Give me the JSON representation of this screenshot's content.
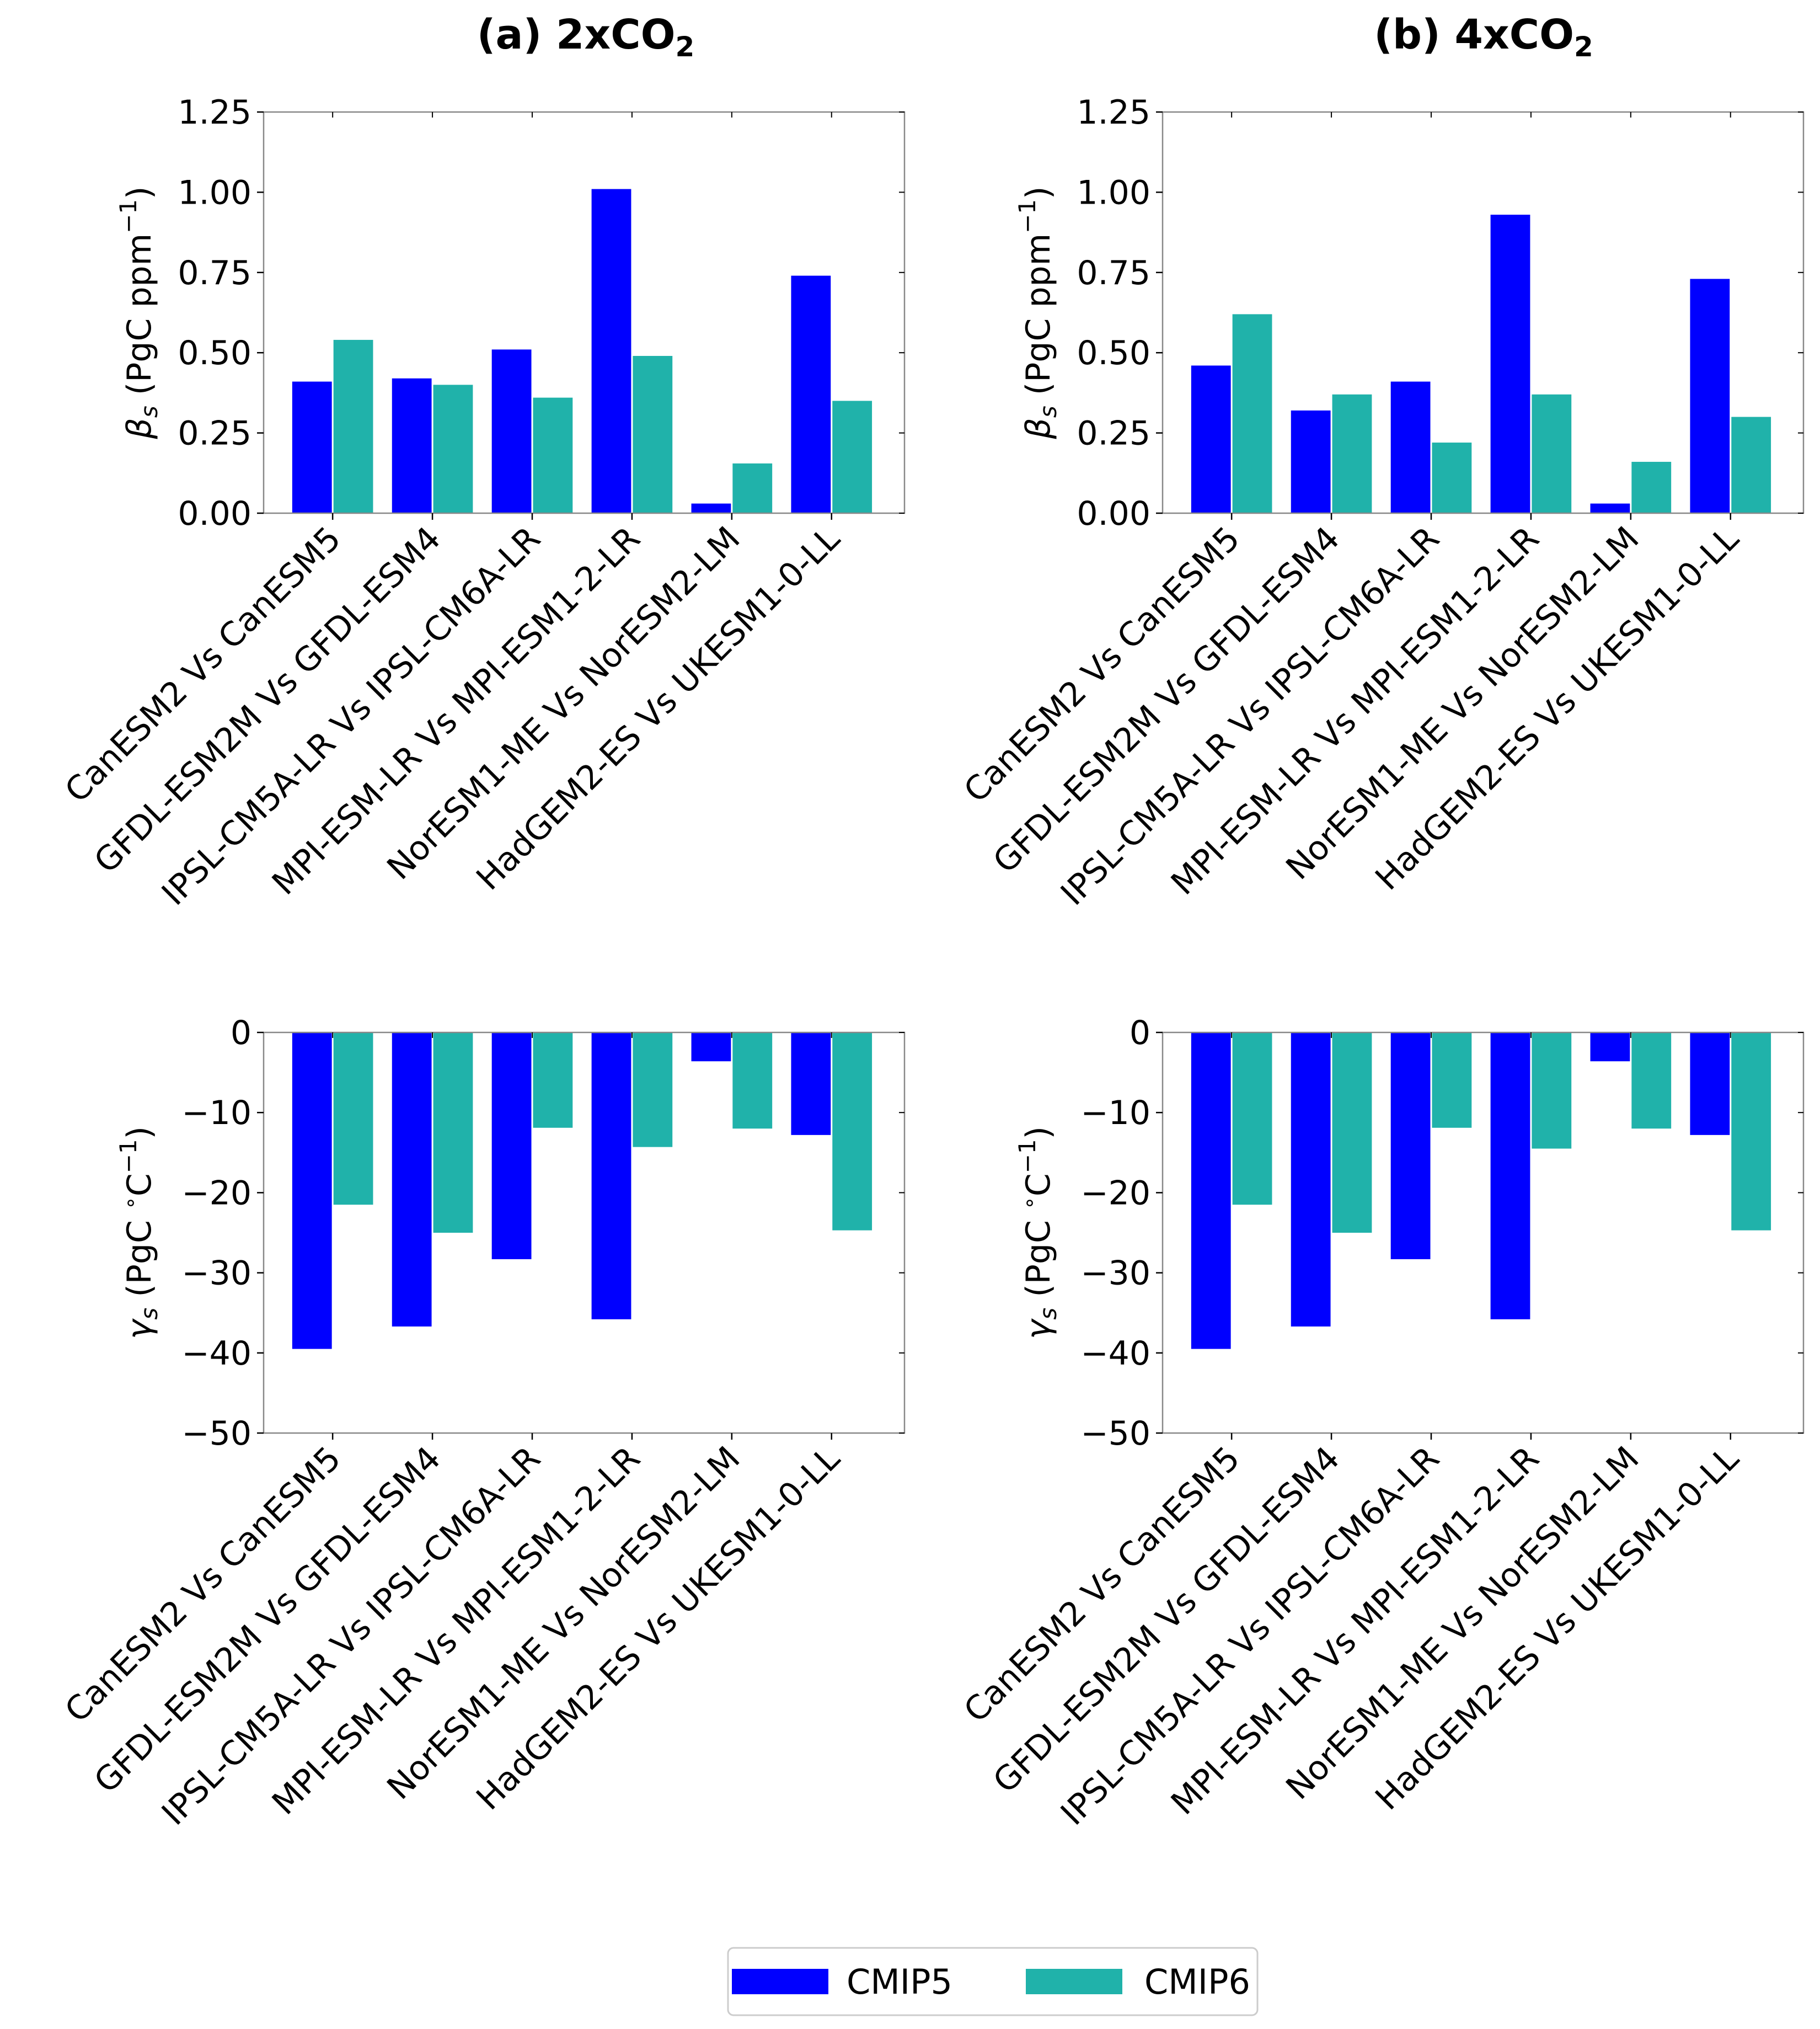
{
  "column_titles": [
    {
      "prefix": "(a) 2xCO",
      "sub": "2"
    },
    {
      "prefix": "(b) 4xCO",
      "sub": "2"
    }
  ],
  "legend": {
    "placement": "bottom-center",
    "items": [
      {
        "label": "CMIP5",
        "color": "#0000ff"
      },
      {
        "label": "CMIP6",
        "color": "#20b2aa"
      }
    ]
  },
  "colors": {
    "cmip5": "#0000ff",
    "cmip6": "#20b2aa",
    "axis": "#888888"
  },
  "chart_data": [
    {
      "type": "bar",
      "panel": "(a) 2xCO2 top",
      "ylabel": {
        "symbol": "β",
        "sub": "s",
        "unit": "(PgC ppm",
        "sup": "−1",
        "close": ")"
      },
      "categories": [
        "CanESM2 Vs CanESM5",
        "GFDL-ESM2M Vs GFDL-ESM4",
        "IPSL-CM5A-LR Vs IPSL-CM6A-LR",
        "MPI-ESM-LR Vs MPI-ESM1-2-LR",
        "NorESM1-ME Vs NorESM2-LM",
        "HadGEM2-ES Vs UKESM1-0-LL"
      ],
      "series": [
        {
          "name": "CMIP5",
          "values": [
            0.41,
            0.42,
            0.51,
            1.01,
            0.03,
            0.74
          ]
        },
        {
          "name": "CMIP6",
          "values": [
            0.54,
            0.4,
            0.36,
            0.49,
            0.155,
            0.35
          ]
        }
      ],
      "ylim": [
        0,
        1.25
      ],
      "yticks": [
        "0.00",
        "0.25",
        "0.50",
        "0.75",
        "1.00",
        "1.25"
      ],
      "grid": false
    },
    {
      "type": "bar",
      "panel": "(b) 4xCO2 top",
      "ylabel": {
        "symbol": "β",
        "sub": "s",
        "unit": "(PgC ppm",
        "sup": "−1",
        "close": ")"
      },
      "categories": [
        "CanESM2 Vs CanESM5",
        "GFDL-ESM2M Vs GFDL-ESM4",
        "IPSL-CM5A-LR Vs IPSL-CM6A-LR",
        "MPI-ESM-LR Vs MPI-ESM1-2-LR",
        "NorESM1-ME Vs NorESM2-LM",
        "HadGEM2-ES Vs UKESM1-0-LL"
      ],
      "series": [
        {
          "name": "CMIP5",
          "values": [
            0.46,
            0.32,
            0.41,
            0.93,
            0.03,
            0.73
          ]
        },
        {
          "name": "CMIP6",
          "values": [
            0.62,
            0.37,
            0.22,
            0.37,
            0.16,
            0.3
          ]
        }
      ],
      "ylim": [
        0,
        1.25
      ],
      "yticks": [
        "0.00",
        "0.25",
        "0.50",
        "0.75",
        "1.00",
        "1.25"
      ],
      "grid": false
    },
    {
      "type": "bar",
      "panel": "(a) 2xCO2 bottom",
      "ylabel": {
        "symbol": "γ",
        "sub": "s",
        "unit": "(PgC ",
        "sup2": "∘",
        "unit2": "C",
        "sup": "−1",
        "close": ")"
      },
      "categories": [
        "CanESM2 Vs CanESM5",
        "GFDL-ESM2M Vs GFDL-ESM4",
        "IPSL-CM5A-LR Vs IPSL-CM6A-LR",
        "MPI-ESM-LR Vs MPI-ESM1-2-LR",
        "NorESM1-ME Vs NorESM2-LM",
        "HadGEM2-ES Vs UKESM1-0-LL"
      ],
      "series": [
        {
          "name": "CMIP5",
          "values": [
            -39.5,
            -36.7,
            -28.3,
            -35.8,
            -3.6,
            -12.8
          ]
        },
        {
          "name": "CMIP6",
          "values": [
            -21.5,
            -25.0,
            -11.9,
            -14.3,
            -12.0,
            -24.7
          ]
        }
      ],
      "ylim": [
        -50,
        0
      ],
      "yticks": [
        "−50",
        "−40",
        "−30",
        "−20",
        "−10",
        "0"
      ],
      "grid": false
    },
    {
      "type": "bar",
      "panel": "(b) 4xCO2 bottom",
      "ylabel": {
        "symbol": "γ",
        "sub": "s",
        "unit": "(PgC ",
        "sup2": "∘",
        "unit2": "C",
        "sup": "−1",
        "close": ")"
      },
      "categories": [
        "CanESM2 Vs CanESM5",
        "GFDL-ESM2M Vs GFDL-ESM4",
        "IPSL-CM5A-LR Vs IPSL-CM6A-LR",
        "MPI-ESM-LR Vs MPI-ESM1-2-LR",
        "NorESM1-ME Vs NorESM2-LM",
        "HadGEM2-ES Vs UKESM1-0-LL"
      ],
      "series": [
        {
          "name": "CMIP5",
          "values": [
            -39.5,
            -36.7,
            -28.3,
            -35.8,
            -3.6,
            -12.8
          ]
        },
        {
          "name": "CMIP6",
          "values": [
            -21.5,
            -25.0,
            -11.9,
            -14.5,
            -12.0,
            -24.7
          ]
        }
      ],
      "ylim": [
        -50,
        0
      ],
      "yticks": [
        "−50",
        "−40",
        "−30",
        "−20",
        "−10",
        "0"
      ],
      "grid": false
    }
  ]
}
